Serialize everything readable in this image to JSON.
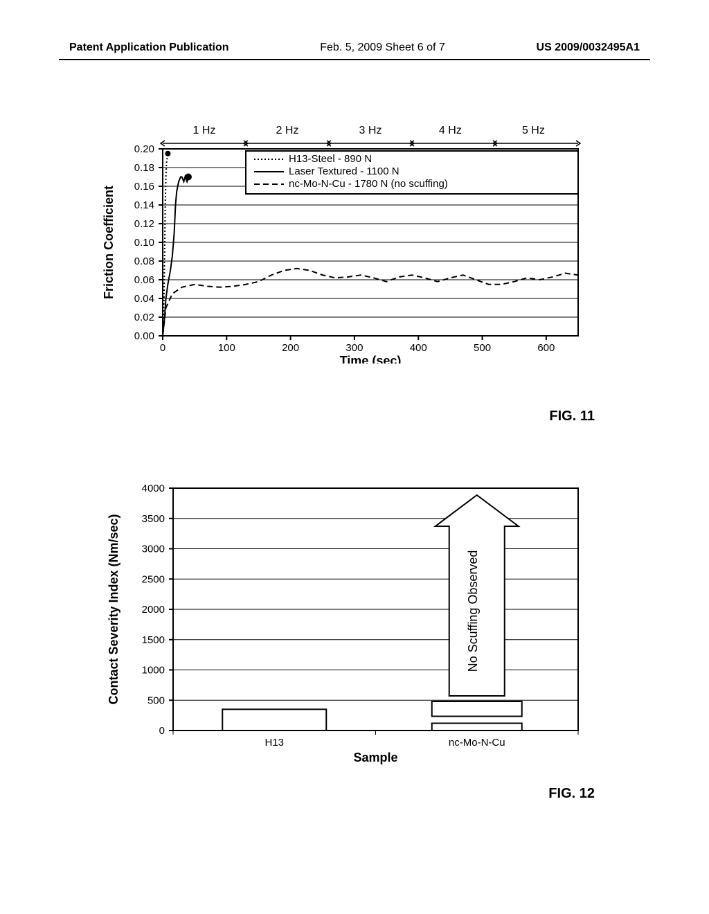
{
  "header": {
    "left": "Patent Application Publication",
    "center": "Feb. 5, 2009  Sheet 6 of 7",
    "right": "US 2009/0032495A1"
  },
  "fig11": {
    "label": "FIG. 11",
    "ylabel": "Friction Coefficient",
    "xlabel": "Time (sec)",
    "ylim": [
      0.0,
      0.2
    ],
    "yticks": [
      "0.00",
      "0.02",
      "0.04",
      "0.06",
      "0.08",
      "0.10",
      "0.12",
      "0.14",
      "0.16",
      "0.18",
      "0.20"
    ],
    "xlim": [
      0,
      650
    ],
    "xticks": [
      0,
      100,
      200,
      300,
      400,
      500,
      600
    ],
    "hz_labels": [
      "1 Hz",
      "2 Hz",
      "3 Hz",
      "4 Hz",
      "5 Hz"
    ],
    "hz_positions": [
      65,
      195,
      325,
      450,
      580
    ],
    "hz_boundaries": [
      0,
      130,
      260,
      390,
      520,
      650
    ],
    "legend": {
      "items": [
        {
          "label": "H13-Steel - 890 N",
          "style": "dotted"
        },
        {
          "label": "Laser Textured - 1100 N",
          "style": "solid"
        },
        {
          "label": "nc-Mo-N-Cu - 1780 N (no scuffing)",
          "style": "dashed"
        }
      ]
    },
    "series": {
      "h13": {
        "style": "dotted",
        "points": [
          [
            0,
            0.0
          ],
          [
            2,
            0.04
          ],
          [
            3,
            0.09
          ],
          [
            4,
            0.14
          ],
          [
            5,
            0.17
          ],
          [
            6,
            0.185
          ],
          [
            7,
            0.19
          ],
          [
            8,
            0.195
          ]
        ]
      },
      "laser": {
        "style": "solid",
        "points": [
          [
            0,
            0.0
          ],
          [
            3,
            0.02
          ],
          [
            5,
            0.04
          ],
          [
            8,
            0.055
          ],
          [
            12,
            0.07
          ],
          [
            15,
            0.085
          ],
          [
            18,
            0.11
          ],
          [
            20,
            0.14
          ],
          [
            22,
            0.155
          ],
          [
            25,
            0.165
          ],
          [
            28,
            0.17
          ],
          [
            30,
            0.17
          ],
          [
            33,
            0.165
          ],
          [
            35,
            0.17
          ],
          [
            38,
            0.165
          ],
          [
            40,
            0.17
          ]
        ]
      },
      "nc": {
        "style": "dashed",
        "points": [
          [
            0,
            0.0
          ],
          [
            5,
            0.03
          ],
          [
            15,
            0.045
          ],
          [
            30,
            0.052
          ],
          [
            50,
            0.055
          ],
          [
            70,
            0.053
          ],
          [
            90,
            0.052
          ],
          [
            110,
            0.053
          ],
          [
            130,
            0.055
          ],
          [
            150,
            0.058
          ],
          [
            170,
            0.065
          ],
          [
            190,
            0.07
          ],
          [
            210,
            0.072
          ],
          [
            230,
            0.07
          ],
          [
            250,
            0.065
          ],
          [
            270,
            0.062
          ],
          [
            290,
            0.063
          ],
          [
            310,
            0.065
          ],
          [
            330,
            0.062
          ],
          [
            350,
            0.058
          ],
          [
            370,
            0.063
          ],
          [
            390,
            0.065
          ],
          [
            410,
            0.062
          ],
          [
            430,
            0.058
          ],
          [
            450,
            0.062
          ],
          [
            470,
            0.065
          ],
          [
            490,
            0.06
          ],
          [
            510,
            0.055
          ],
          [
            530,
            0.055
          ],
          [
            550,
            0.058
          ],
          [
            570,
            0.062
          ],
          [
            590,
            0.06
          ],
          [
            610,
            0.063
          ],
          [
            630,
            0.067
          ],
          [
            650,
            0.065
          ]
        ]
      }
    },
    "colors": {
      "axis": "#000000",
      "grid": "#000000",
      "line": "#000000",
      "background": "#ffffff"
    }
  },
  "fig12": {
    "label": "FIG. 12",
    "ylabel": "Contact Severity Index (Nm/sec)",
    "xlabel": "Sample",
    "ylim": [
      0,
      4000
    ],
    "yticks": [
      0,
      500,
      1000,
      1500,
      2000,
      2500,
      3000,
      3500,
      4000
    ],
    "categories": [
      "H13",
      "nc-Mo-N-Cu"
    ],
    "bars": {
      "H13": [
        350
      ],
      "nc-Mo-N-Cu": [
        120,
        480
      ]
    },
    "arrow_text": "No Scuffing Observed",
    "bar_colors": {
      "fill": "#ffffff",
      "stroke": "#000000"
    },
    "colors": {
      "axis": "#000000",
      "grid": "#000000",
      "background": "#ffffff"
    }
  }
}
